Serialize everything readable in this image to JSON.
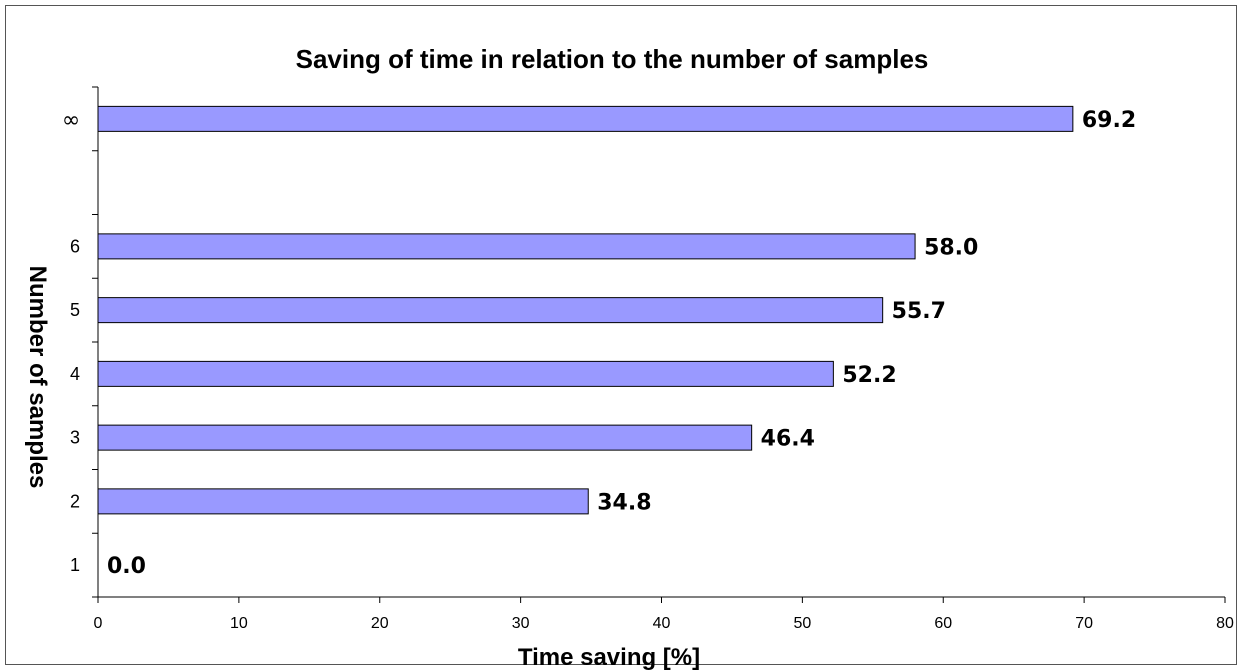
{
  "chart_data": {
    "type": "bar",
    "orientation": "horizontal",
    "title": "Saving of time in relation to the number of samples",
    "xlabel": "Time saving [%]",
    "ylabel": "Number of samples",
    "xlim": [
      0,
      80
    ],
    "xticks": [
      "0",
      "10",
      "20",
      "30",
      "40",
      "50",
      "60",
      "70",
      "80"
    ],
    "categories": [
      "1",
      "2",
      "3",
      "4",
      "5",
      "6",
      "",
      "∞"
    ],
    "values": [
      0.0,
      34.8,
      46.4,
      52.2,
      55.7,
      58.0,
      null,
      69.2
    ],
    "data_labels": [
      "0.0",
      "34.8",
      "46.4",
      "52.2",
      "55.7",
      "58.0",
      "",
      "69.2"
    ],
    "bar_color": "#9999ff",
    "bar_stroke": "#000000",
    "grid": false,
    "legend": "none"
  }
}
